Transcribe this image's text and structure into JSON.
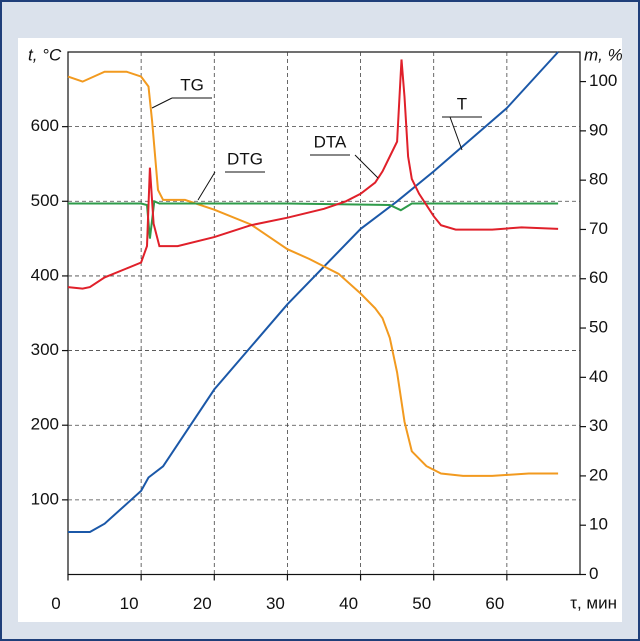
{
  "chart_data": {
    "type": "line",
    "y_label": "t, °C",
    "y2_label": "m, %",
    "x_label": "τ, мин",
    "xlim": [
      0,
      70
    ],
    "xticks": [
      0,
      10,
      20,
      30,
      40,
      50,
      60
    ],
    "ylim": [
      0,
      700
    ],
    "yticks": [
      100,
      200,
      300,
      400,
      500,
      600
    ],
    "y2lim": [
      0,
      106
    ],
    "y2ticks": [
      0,
      10,
      20,
      30,
      40,
      50,
      60,
      70,
      80,
      90,
      100
    ],
    "grid": true,
    "series": [
      {
        "name": "T",
        "color": "#1b58a8",
        "axis": "y",
        "x": [
          0,
          3,
          5,
          10,
          11,
          13,
          20,
          30,
          40,
          45,
          50,
          60,
          67
        ],
        "values": [
          57,
          57,
          68,
          112,
          130,
          145,
          248,
          362,
          463,
          500,
          540,
          625,
          700
        ]
      },
      {
        "name": "TG",
        "color": "#f29a1f",
        "axis": "y2",
        "x": [
          0,
          2,
          5,
          8,
          10,
          11,
          11.5,
          12.3,
          13,
          16,
          20,
          25,
          28,
          30,
          33,
          37,
          40,
          42,
          43,
          44,
          45,
          46,
          47,
          49,
          51,
          54,
          58,
          63,
          67
        ],
        "values": [
          101,
          100,
          102,
          102,
          101,
          99,
          92,
          78,
          76,
          76,
          74,
          71,
          68,
          66,
          64,
          61,
          57,
          54,
          52,
          48,
          41,
          31,
          25,
          22,
          20.5,
          20,
          20,
          20.5,
          20.5
        ]
      },
      {
        "name": "DTG",
        "color": "#2e9b4a",
        "axis": "y",
        "x": [
          0,
          10,
          10.8,
          11.2,
          11.8,
          12.5,
          30,
          44,
          45.5,
          47,
          67
        ],
        "values": [
          497,
          497,
          495,
          450,
          500,
          497,
          497,
          495,
          488,
          497,
          497
        ]
      },
      {
        "name": "DTA",
        "color": "#e0202a",
        "axis": "y",
        "x": [
          0,
          2,
          3,
          5,
          8,
          10,
          10.8,
          11.2,
          11.7,
          12.5,
          15,
          20,
          25,
          30,
          35,
          38,
          40,
          42,
          43,
          44,
          45,
          45.6,
          46,
          46.5,
          47,
          48,
          50,
          51,
          53,
          58,
          62,
          67
        ],
        "values": [
          385,
          383,
          385,
          398,
          410,
          418,
          440,
          545,
          470,
          440,
          440,
          452,
          468,
          478,
          490,
          500,
          510,
          525,
          540,
          560,
          580,
          690,
          640,
          560,
          530,
          510,
          480,
          468,
          462,
          462,
          465,
          463
        ]
      }
    ]
  }
}
